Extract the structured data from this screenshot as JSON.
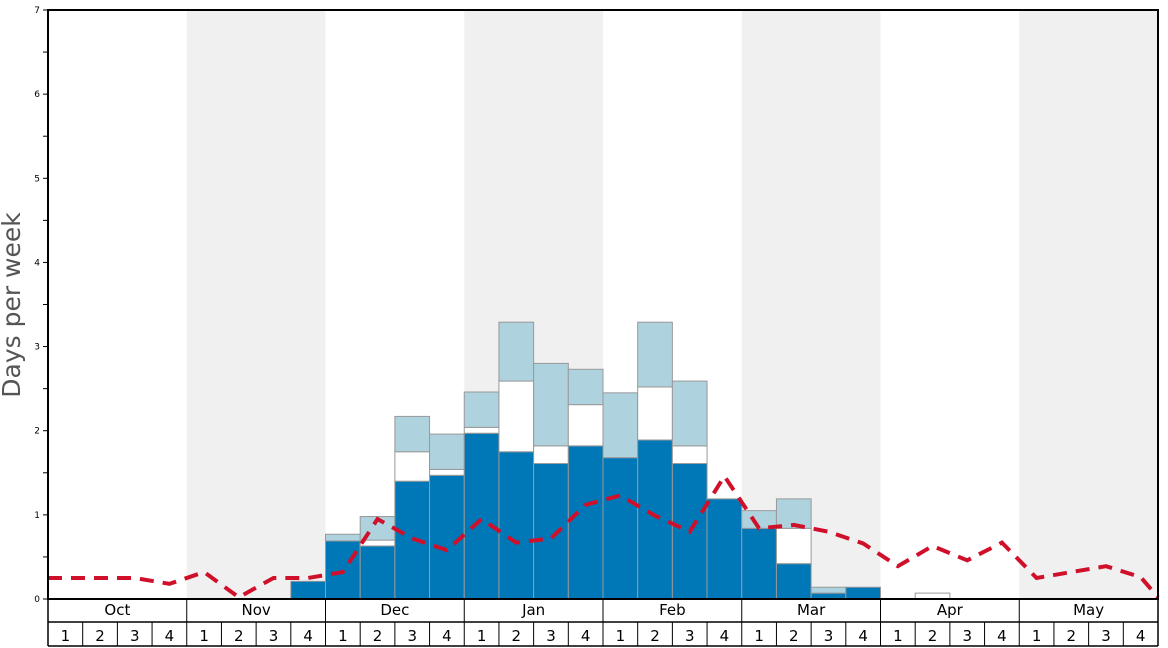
{
  "chart_data": {
    "type": "bar",
    "ylabel": "Days per week",
    "ylim": [
      0,
      7
    ],
    "yticks": [
      "0",
      "1",
      "2",
      "3",
      "4",
      "5",
      "6",
      "7"
    ],
    "months": [
      "Oct",
      "Nov",
      "Dec",
      "Jan",
      "Feb",
      "Mar",
      "Apr",
      "May"
    ],
    "weeks": [
      "1",
      "2",
      "3",
      "4"
    ],
    "grid": "alternating month shading",
    "colors": {
      "dark": "#0077b6",
      "white": "#ffffff",
      "light": "#aed3df",
      "line": "#d0102a",
      "shade": "#f0f0f0"
    },
    "series": [
      {
        "type": "stacked-bar-bottom",
        "values": [
          0,
          0,
          0,
          0,
          0,
          0,
          0,
          0.21,
          0.69,
          0.63,
          1.4,
          1.47,
          1.97,
          1.75,
          1.61,
          1.82,
          1.68,
          1.89,
          1.61,
          1.19,
          0.84,
          0.42,
          0.07,
          0.14,
          0,
          0,
          0,
          0,
          0,
          0,
          0,
          0
        ]
      },
      {
        "type": "stacked-bar-middle",
        "values": [
          0,
          0,
          0,
          0,
          0,
          0,
          0,
          0,
          0,
          0.07,
          0.35,
          0.07,
          0.07,
          0.84,
          0.21,
          0.49,
          0,
          0.63,
          0.21,
          0,
          0,
          0.42,
          0,
          0,
          0,
          0.07,
          0,
          0,
          0,
          0,
          0,
          0
        ]
      },
      {
        "type": "stacked-bar-top",
        "values": [
          0,
          0,
          0,
          0,
          0,
          0,
          0,
          0,
          0.08,
          0.28,
          0.42,
          0.42,
          0.42,
          0.7,
          0.98,
          0.42,
          0.77,
          0.77,
          0.77,
          0,
          0.21,
          0.35,
          0.07,
          0,
          0,
          0,
          0,
          0,
          0,
          0,
          0,
          0
        ]
      },
      {
        "type": "dashed-line",
        "values": [
          0.25,
          0.25,
          0.25,
          0.18,
          0.32,
          0.02,
          0.25,
          0.25,
          0.32,
          0.95,
          0.72,
          0.58,
          0.95,
          0.67,
          0.72,
          1.12,
          1.23,
          0.99,
          0.8,
          1.46,
          0.84,
          0.88,
          0.8,
          0.66,
          0.39,
          0.63,
          0.46,
          0.67,
          0.25,
          0.32,
          0.39,
          0.26
        ]
      }
    ]
  }
}
